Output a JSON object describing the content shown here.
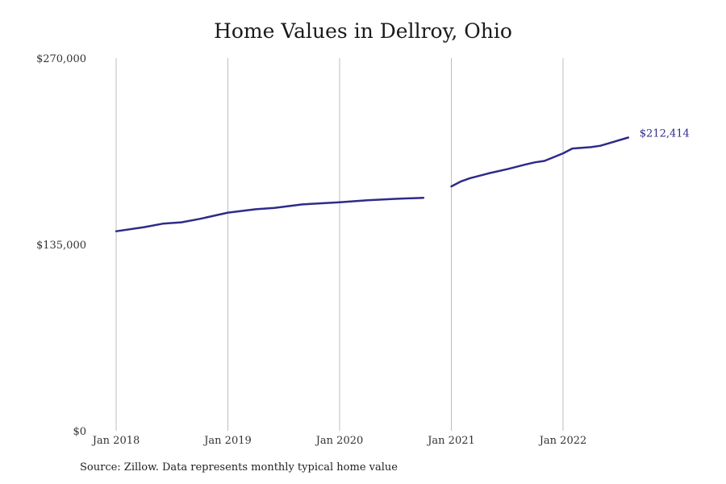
{
  "chart_data": {
    "type": "line",
    "title": "Home Values in Dellroy, Ohio",
    "xlabel": "",
    "ylabel": "",
    "ylim": [
      0,
      270000
    ],
    "y_ticks": [
      0,
      135000,
      270000
    ],
    "y_tick_labels": [
      "$0",
      "$135,000",
      "$270,000"
    ],
    "x_ticks": [
      "2018-01",
      "2019-01",
      "2020-01",
      "2021-01",
      "2022-01"
    ],
    "x_tick_labels": [
      "Jan 2018",
      "Jan 2019",
      "Jan 2020",
      "Jan 2021",
      "Jan 2022"
    ],
    "grid": "vertical",
    "line_color": "#2e2b8a",
    "end_label": "$212,414",
    "series": [
      {
        "segments": [
          [
            {
              "x": "2018-01",
              "y": 144500
            },
            {
              "x": "2018-04",
              "y": 147500
            },
            {
              "x": "2018-06",
              "y": 150000
            },
            {
              "x": "2018-08",
              "y": 151000
            },
            {
              "x": "2018-10",
              "y": 153500
            },
            {
              "x": "2019-01",
              "y": 158000
            },
            {
              "x": "2019-04",
              "y": 160500
            },
            {
              "x": "2019-06",
              "y": 161500
            },
            {
              "x": "2019-09",
              "y": 164000
            },
            {
              "x": "2020-01",
              "y": 165500
            },
            {
              "x": "2020-04",
              "y": 167000
            },
            {
              "x": "2020-07",
              "y": 168000
            },
            {
              "x": "2020-10",
              "y": 168800
            }
          ],
          [
            {
              "x": "2021-01",
              "y": 177000
            },
            {
              "x": "2021-02",
              "y": 180500
            },
            {
              "x": "2021-03",
              "y": 183000
            },
            {
              "x": "2021-05",
              "y": 186500
            },
            {
              "x": "2021-07",
              "y": 189500
            },
            {
              "x": "2021-09",
              "y": 193000
            },
            {
              "x": "2021-10",
              "y": 194500
            },
            {
              "x": "2021-11",
              "y": 195500
            },
            {
              "x": "2022-01",
              "y": 201000
            },
            {
              "x": "2022-02",
              "y": 204500
            },
            {
              "x": "2022-04",
              "y": 205500
            },
            {
              "x": "2022-05",
              "y": 206500
            },
            {
              "x": "2022-08",
              "y": 212414
            }
          ]
        ]
      }
    ]
  },
  "source_note": "Source: Zillow. Data represents monthly typical home value"
}
